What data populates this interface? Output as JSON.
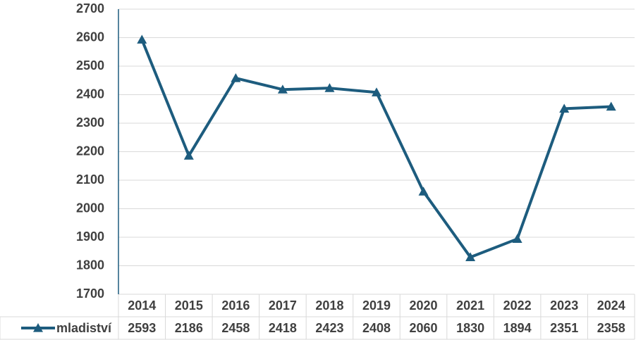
{
  "chart_data": {
    "type": "line",
    "categories": [
      "2014",
      "2015",
      "2016",
      "2017",
      "2018",
      "2019",
      "2020",
      "2021",
      "2022",
      "2023",
      "2024"
    ],
    "series": [
      {
        "name": "mladiství",
        "color": "#1d5c7e",
        "values": [
          2593,
          2186,
          2458,
          2418,
          2423,
          2408,
          2060,
          1830,
          1894,
          2351,
          2358
        ]
      }
    ],
    "ylim": [
      1700,
      2700
    ],
    "yticks": [
      1700,
      1800,
      1900,
      2000,
      2100,
      2200,
      2300,
      2400,
      2500,
      2600,
      2700
    ],
    "grid": true,
    "data_table": true
  }
}
